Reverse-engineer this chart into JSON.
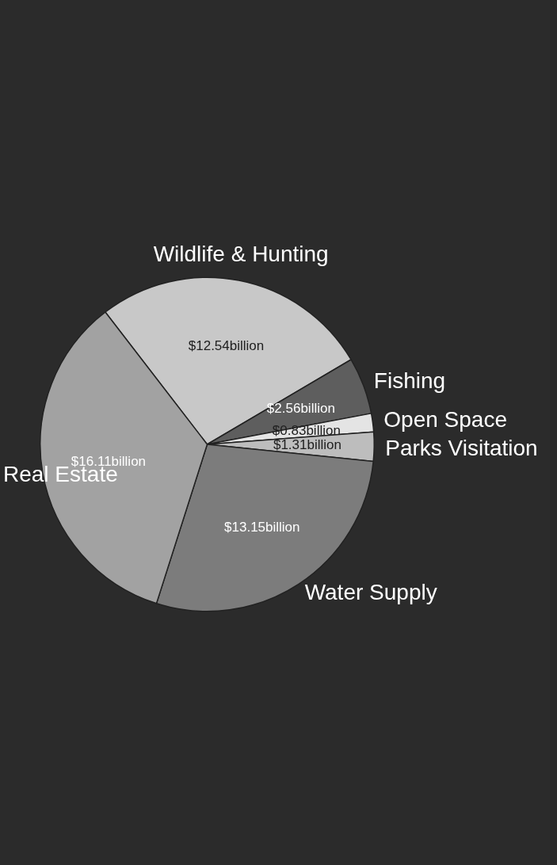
{
  "chart_data": {
    "type": "pie",
    "categories": [
      "Wildlife & Hunting",
      "Fishing",
      "Open Space",
      "Parks Visitation",
      "Water Supply",
      "Real Estate"
    ],
    "values": [
      12.54,
      2.56,
      0.83,
      1.31,
      13.15,
      16.11
    ],
    "colors": [
      "#c8c8c8",
      "#5e5e5e",
      "#e4e4e4",
      "#bdbdbd",
      "#7c7c7c",
      "#a2a2a2"
    ],
    "value_labels": [
      "$12.54billion",
      "$2.56billion",
      "$0.83billion",
      "$1.31billion",
      "$13.15billion",
      "$16.11billion"
    ]
  }
}
